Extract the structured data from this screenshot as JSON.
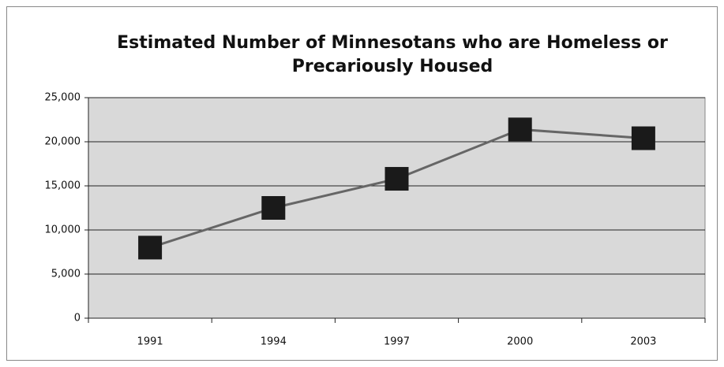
{
  "chart_data": {
    "type": "line",
    "title": "Estimated Number of Minnesotans who are Homeless or Precariously Housed",
    "categories": [
      "1991",
      "1994",
      "1997",
      "2000",
      "2003"
    ],
    "values": [
      8000,
      12500,
      15800,
      21400,
      20400
    ],
    "color": "#666666",
    "marker_color": "#1a1a1a",
    "plot_background": "#d9d9d9",
    "ylim": [
      0,
      25000
    ],
    "yticks": [
      0,
      {
        "value": 5000,
        "label": "5,000"
      },
      {
        "value": 10000,
        "label": "10,000"
      },
      {
        "value": 15000,
        "label": "15,000"
      },
      {
        "value": 20000,
        "label": "20,000"
      },
      {
        "value": 25000,
        "label": "25,000"
      }
    ],
    "grid": true
  }
}
